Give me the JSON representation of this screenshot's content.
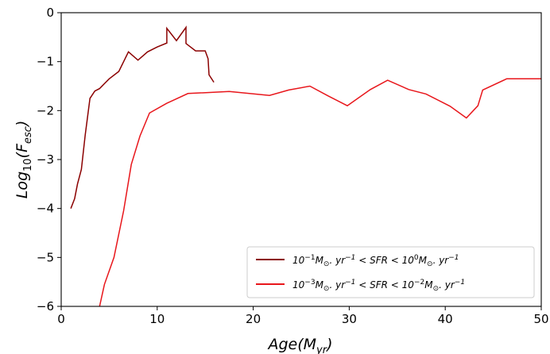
{
  "chart_data": {
    "type": "line",
    "xlabel": "Age(M_yr)",
    "ylabel": "Log10(F_esc)",
    "xlim": [
      0,
      50
    ],
    "ylim": [
      -6,
      0
    ],
    "xticks": [
      0,
      10,
      20,
      30,
      40,
      50
    ],
    "yticks": [
      0,
      -1,
      -2,
      -3,
      -4,
      -5,
      -6
    ],
    "grid": false,
    "legend_position": "lower-right",
    "series": [
      {
        "name": "10^-1 M_⊙.yr^-1 < SFR < 10^0 M_⊙.yr^-1",
        "color": "#8b0000",
        "x": [
          1.0,
          1.4,
          1.7,
          2.1,
          2.5,
          3.0,
          3.5,
          4.0,
          4.5,
          5.0,
          6.0,
          7.0,
          8.0,
          9.0,
          10.0,
          11.0,
          11.0,
          12.0,
          13.0,
          13.0,
          14.0,
          15.0,
          15.3,
          15.4,
          15.9
        ],
        "y": [
          -4.0,
          -3.8,
          -3.5,
          -3.2,
          -2.5,
          -1.75,
          -1.6,
          -1.55,
          -1.45,
          -1.35,
          -1.2,
          -0.8,
          -0.97,
          -0.8,
          -0.7,
          -0.62,
          -0.32,
          -0.57,
          -0.3,
          -0.63,
          -0.78,
          -0.78,
          -0.94,
          -1.27,
          -1.42
        ]
      },
      {
        "name": "10^-3 M_⊙.yr^-1 < SFR < 10^-2 M_⊙.yr^-1",
        "color": "#e8161b",
        "x": [
          4.0,
          4.5,
          5.5,
          6.5,
          7.3,
          8.2,
          9.2,
          11.0,
          13.2,
          17.5,
          21.7,
          23.7,
          25.9,
          27.8,
          29.8,
          32.2,
          34.0,
          36.2,
          38.0,
          40.5,
          42.2,
          43.4,
          43.9,
          46.4,
          50.0
        ],
        "y": [
          -6.0,
          -5.55,
          -5.0,
          -4.05,
          -3.1,
          -2.52,
          -2.05,
          -1.85,
          -1.65,
          -1.61,
          -1.69,
          -1.58,
          -1.5,
          -1.7,
          -1.9,
          -1.57,
          -1.38,
          -1.57,
          -1.66,
          -1.91,
          -2.15,
          -1.9,
          -1.58,
          -1.35,
          -1.35
        ]
      }
    ]
  }
}
